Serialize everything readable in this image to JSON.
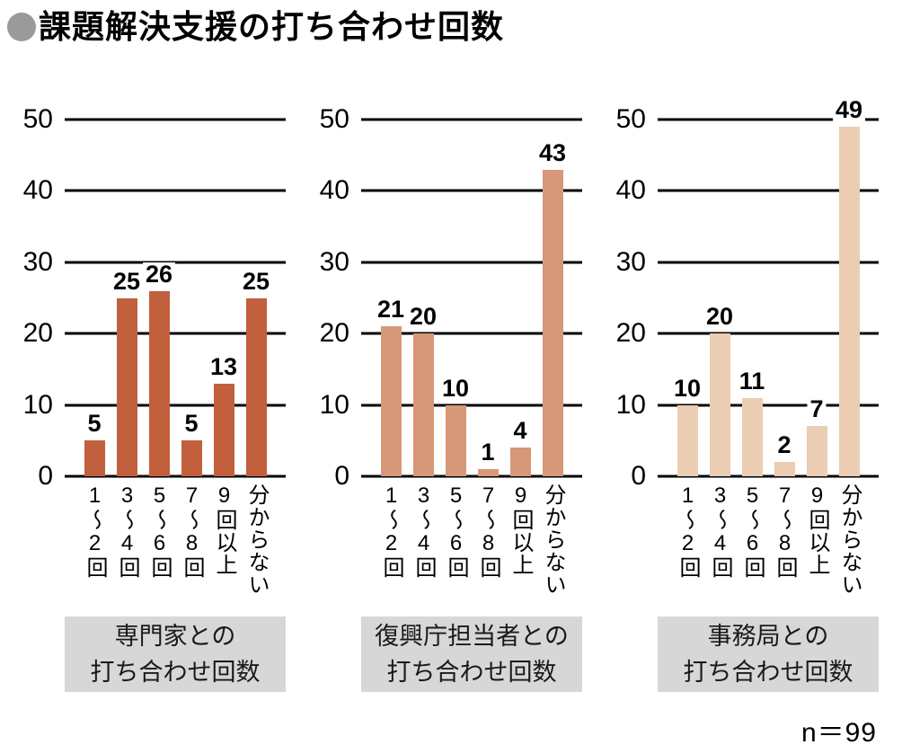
{
  "page": {
    "title": "課題解決支援の打ち合わせ回数",
    "bullet_icon": "circle-bullet",
    "sample_size": "n＝99",
    "colors": {
      "bar_chart1": "#c2603d",
      "bar_chart2": "#d69878",
      "bar_chart3": "#ebcdb3",
      "group_box_bg": "#d7d7d7",
      "bullet_gray": "#9a9a9a",
      "gridline": "#000000"
    }
  },
  "chart_data": [
    {
      "type": "bar",
      "title": "専門家との打ち合わせ回数",
      "title_lines": [
        "専門家との",
        "打ち合わせ回数"
      ],
      "categories": [
        "1〜2回",
        "3〜4回",
        "5〜6回",
        "7〜8回",
        "9回以上",
        "分からない"
      ],
      "values": [
        5,
        25,
        26,
        5,
        13,
        25
      ],
      "bar_color": "#c2603d",
      "ylim": [
        0,
        50
      ],
      "yticks": [
        0,
        10,
        20,
        30,
        40,
        50
      ],
      "grid": true,
      "legend": "none"
    },
    {
      "type": "bar",
      "title": "復興庁担当者との打ち合わせ回数",
      "title_lines": [
        "復興庁担当者との",
        "打ち合わせ回数"
      ],
      "categories": [
        "1〜2回",
        "3〜4回",
        "5〜6回",
        "7〜8回",
        "9回以上",
        "分からない"
      ],
      "values": [
        21,
        20,
        10,
        1,
        4,
        43
      ],
      "bar_color": "#d69878",
      "ylim": [
        0,
        50
      ],
      "yticks": [
        0,
        10,
        20,
        30,
        40,
        50
      ],
      "grid": true,
      "legend": "none"
    },
    {
      "type": "bar",
      "title": "事務局との打ち合わせ回数",
      "title_lines": [
        "事務局との",
        "打ち合わせ回数"
      ],
      "categories": [
        "1〜2回",
        "3〜4回",
        "5〜6回",
        "7〜8回",
        "9回以上",
        "分からない"
      ],
      "values": [
        10,
        20,
        11,
        2,
        7,
        49
      ],
      "bar_color": "#ebcdb3",
      "ylim": [
        0,
        50
      ],
      "yticks": [
        0,
        10,
        20,
        30,
        40,
        50
      ],
      "grid": true,
      "legend": "none"
    }
  ]
}
